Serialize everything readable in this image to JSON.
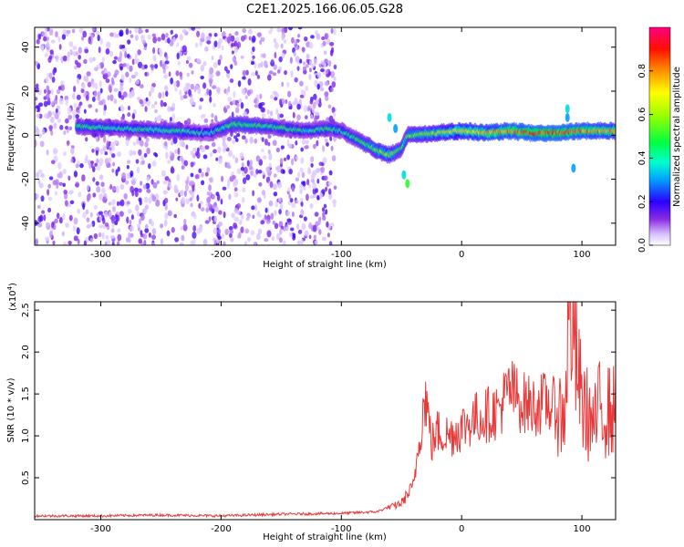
{
  "title": "C2E1.2025.166.06.05.G28",
  "chart_data": [
    {
      "type": "heatmap",
      "xlabel": "Height of straight line (km)",
      "ylabel": "Frequency (Hz)",
      "xlim": [
        -355,
        128
      ],
      "ylim": [
        -50,
        49
      ],
      "x_ticks": [
        -300,
        -200,
        -100,
        0,
        100
      ],
      "y_ticks": [
        -40,
        -20,
        0,
        20,
        40
      ],
      "colorbar": {
        "label": "Normalized spectral amplitude",
        "range": [
          0,
          1
        ],
        "ticks": [
          "0.0",
          "0.2",
          "0.4",
          "0.6",
          "0.8"
        ],
        "colors": [
          "#ffffff",
          "#c8a6ff",
          "#7f00ff",
          "#0000ff",
          "#00c8ff",
          "#00ff7f",
          "#7fff00",
          "#ffff00",
          "#ff8000",
          "#ff0000",
          "#ff007f"
        ]
      },
      "ridge": {
        "description_x": [
          -320,
          -280,
          -240,
          -210,
          -190,
          -160,
          -130,
          -110,
          -100,
          -90,
          -80,
          -70,
          -60,
          -50,
          -45,
          -40,
          -20,
          0,
          20,
          40,
          60,
          80,
          100,
          128
        ],
        "frequency": [
          4,
          3,
          2,
          1,
          5,
          4,
          2,
          3,
          2,
          -1,
          -4,
          -7,
          -9,
          -6,
          0,
          0,
          1,
          2,
          1,
          2,
          1,
          1,
          2,
          2
        ],
        "amplitude": [
          0.45,
          0.4,
          0.45,
          0.35,
          0.5,
          0.45,
          0.4,
          0.45,
          0.4,
          0.45,
          0.5,
          0.55,
          0.6,
          0.45,
          0.5,
          0.55,
          0.6,
          0.7,
          0.75,
          0.8,
          0.85,
          0.85,
          0.8,
          0.75
        ]
      },
      "noise_extent_x": [
        -355,
        -105
      ]
    },
    {
      "type": "line",
      "xlabel": "Height of straight line (km)",
      "ylabel": "SNR (10 * v/v)",
      "y_multiplier": "(x10",
      "y_multiplier_exp": "4",
      "xlim": [
        -355,
        128
      ],
      "ylim": [
        0,
        2.6
      ],
      "x_ticks": [
        -300,
        -200,
        -100,
        0,
        100
      ],
      "y_ticks": [
        "0.5",
        "1.0",
        "1.5",
        "2.0",
        "2.5"
      ],
      "series": [
        {
          "color": "#e83a3a",
          "x": [
            -355,
            -300,
            -250,
            -200,
            -150,
            -100,
            -70,
            -50,
            -40,
            -35,
            -30,
            -25,
            -20,
            -10,
            0,
            10,
            20,
            30,
            40,
            50,
            60,
            70,
            80,
            85,
            90,
            95,
            100,
            110,
            115,
            120,
            128
          ],
          "y": [
            0.03,
            0.03,
            0.04,
            0.03,
            0.05,
            0.06,
            0.08,
            0.2,
            0.4,
            1.0,
            1.5,
            0.9,
            1.05,
            1.0,
            1.1,
            1.2,
            1.25,
            1.3,
            1.55,
            1.4,
            1.35,
            1.4,
            1.3,
            1.2,
            2.6,
            1.9,
            1.4,
            1.1,
            1.35,
            1.3,
            1.28
          ]
        }
      ]
    }
  ]
}
